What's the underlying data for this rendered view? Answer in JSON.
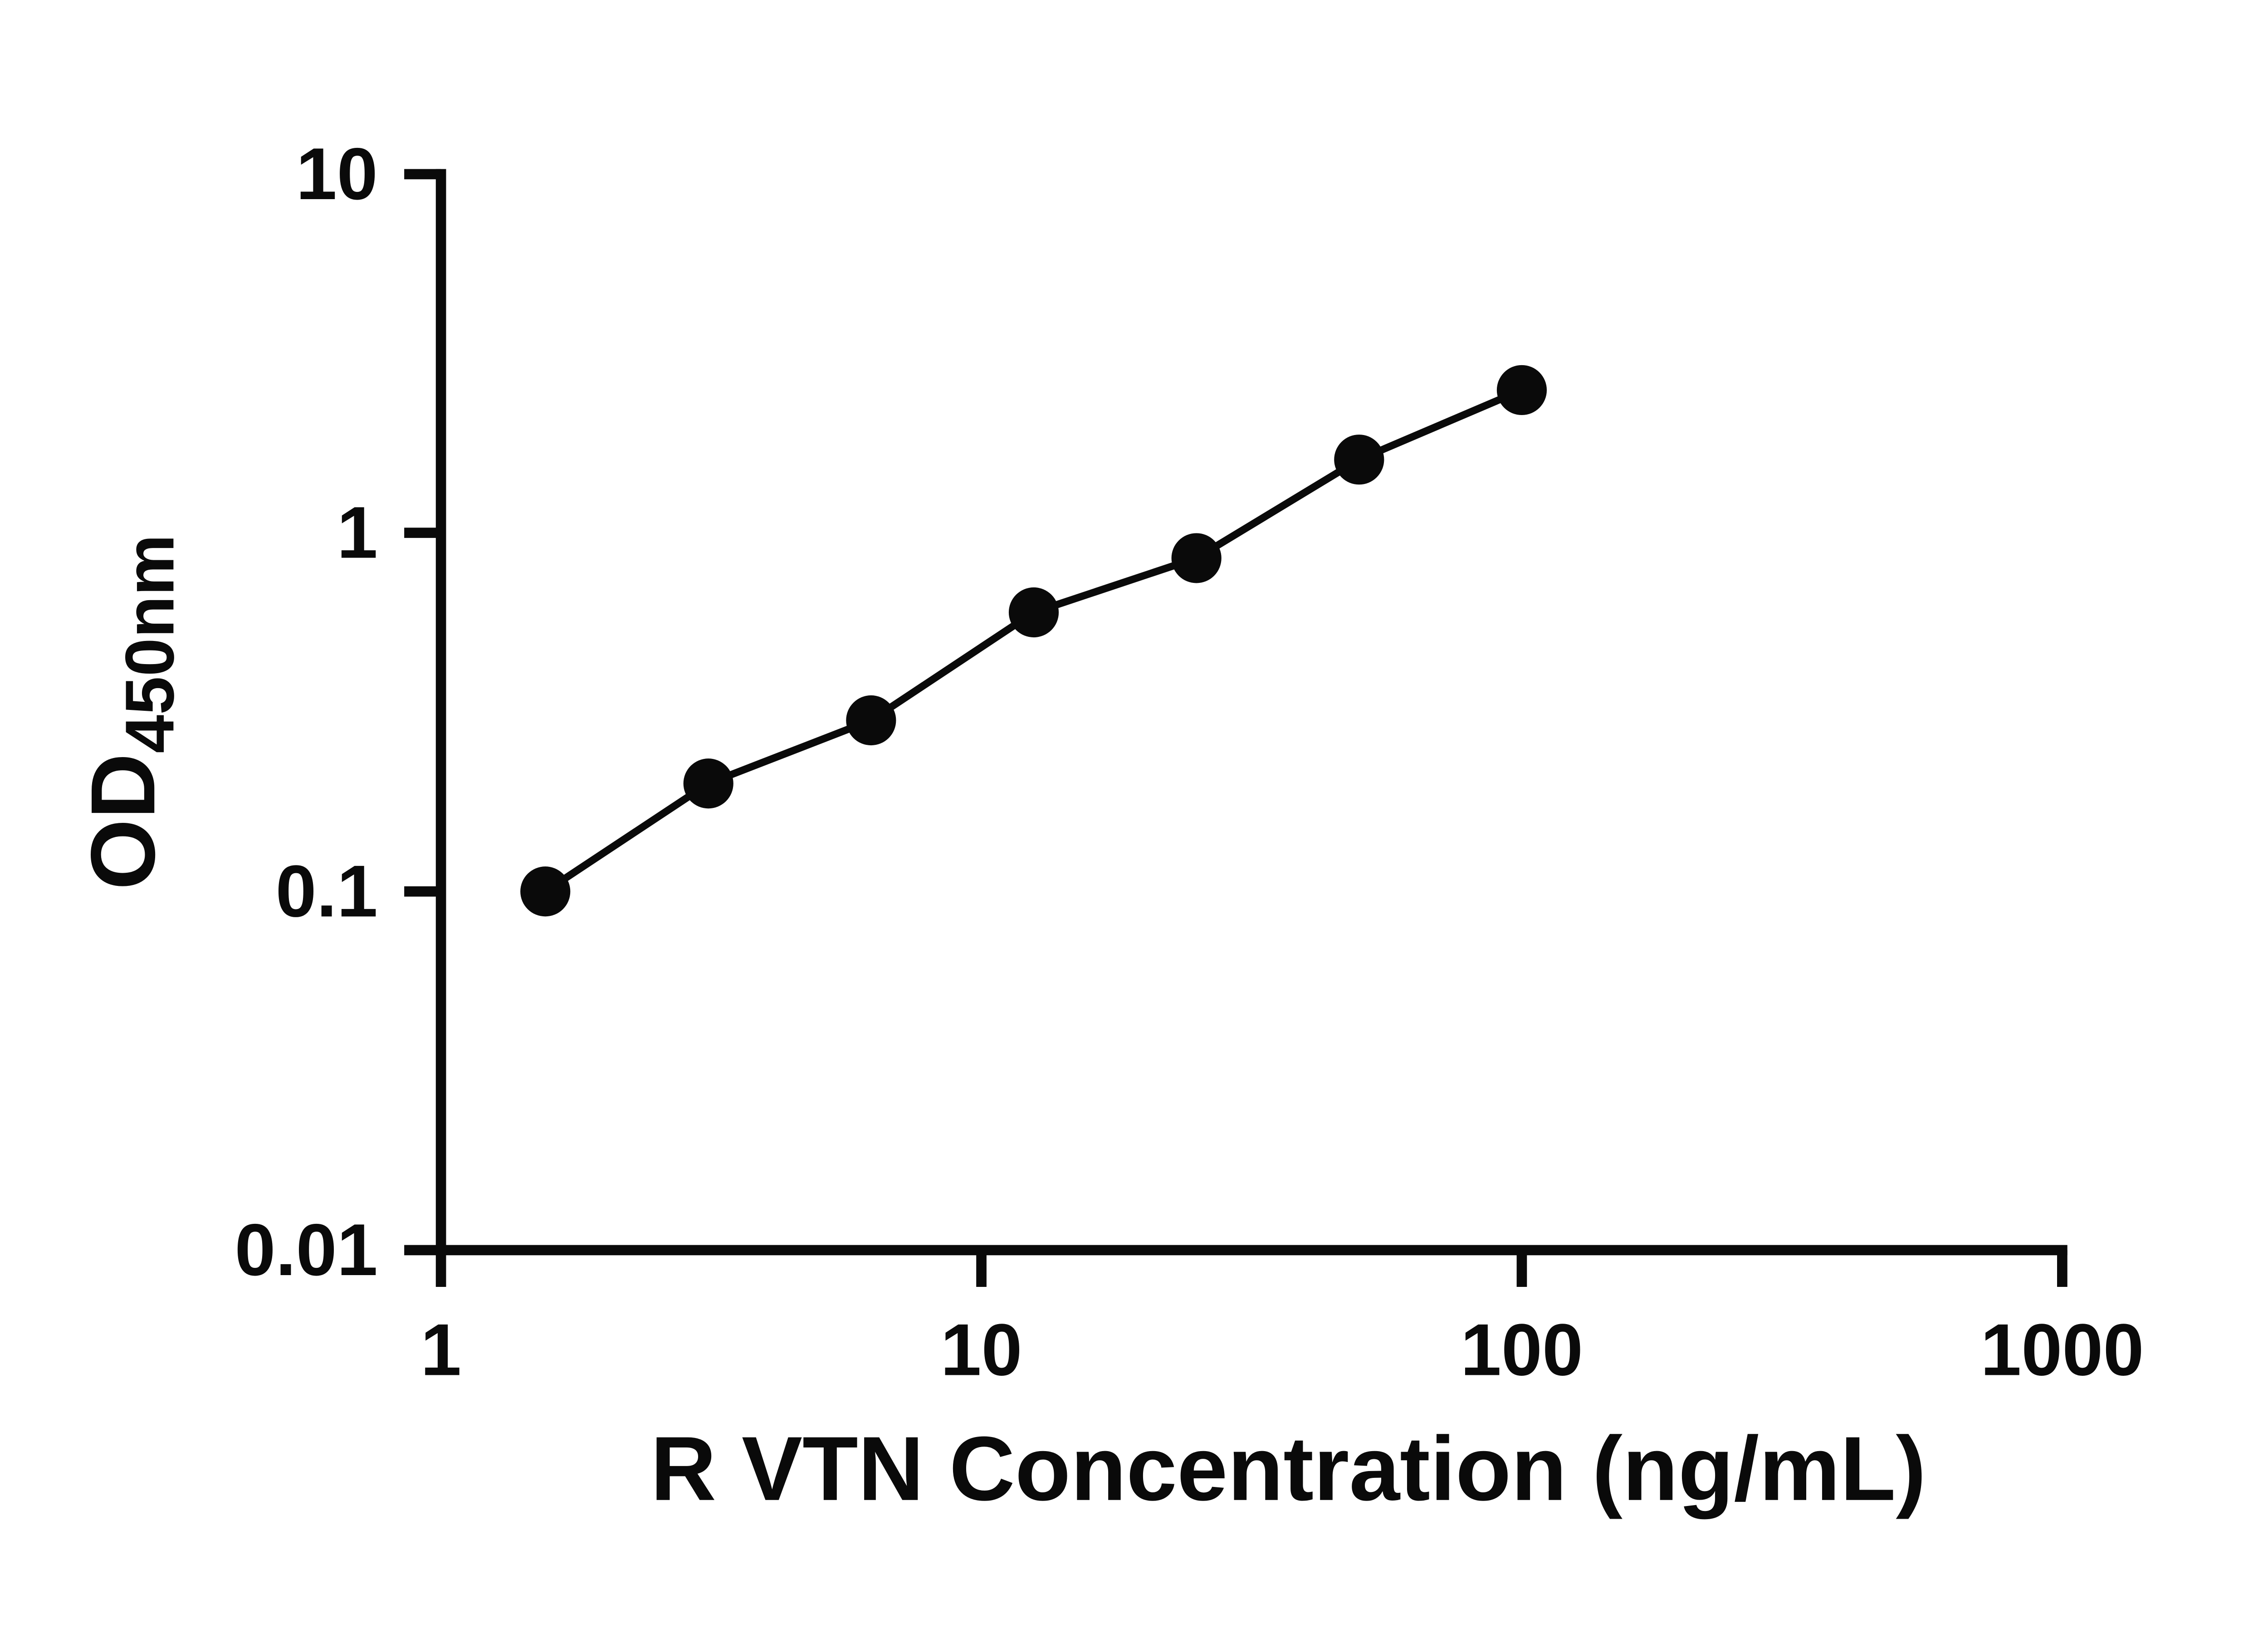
{
  "chart_data": {
    "type": "scatter",
    "title": "",
    "xlabel": "R VTN Concentration (ng/mL)",
    "ylabel_base": "OD",
    "ylabel_subscript": "450nm",
    "x_scale": "log",
    "y_scale": "log",
    "xlim": [
      1,
      1000
    ],
    "ylim": [
      0.01,
      10
    ],
    "x_tick_labels": [
      "1",
      "10",
      "100",
      "1000"
    ],
    "y_tick_labels": [
      "10",
      "1",
      "0.1",
      "0.01"
    ],
    "grid": false,
    "legend": "none",
    "series": [
      {
        "x": [
          1.56,
          3.125,
          6.25,
          12.5,
          25,
          50,
          100
        ],
        "y": [
          0.1,
          0.2,
          0.3,
          0.6,
          0.85,
          1.6,
          2.5
        ],
        "marker": "filled-circle",
        "line": "solid"
      }
    ]
  },
  "colors": {
    "background": "#ffffff",
    "axis": "#0a0a0a",
    "marker": "#0a0a0a",
    "line": "#0a0a0a",
    "text": "#0a0a0a"
  }
}
